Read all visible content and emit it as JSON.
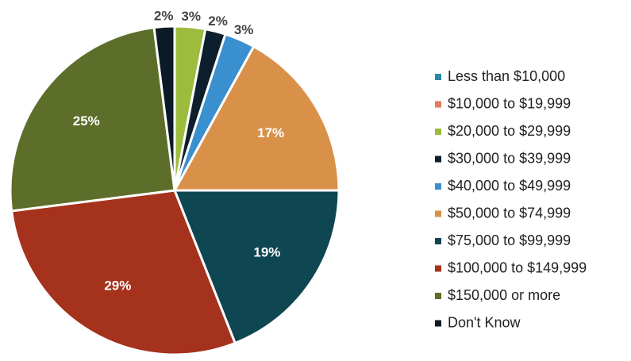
{
  "chart_data": {
    "type": "pie",
    "categories": [
      "Less than $10,000",
      "$10,000 to $19,999",
      "$20,000 to $29,999",
      "$30,000 to $39,999",
      "$40,000 to $49,999",
      "$50,000 to $74,999",
      "$75,000 to $99,999",
      "$100,000  to $149,999",
      "$150,000  or more",
      "Don't Know"
    ],
    "values": [
      0,
      0,
      3,
      2,
      3,
      17,
      19,
      29,
      25,
      2
    ],
    "value_labels": [
      null,
      null,
      "3%",
      "2%",
      "3%",
      "17%",
      "19%",
      "29%",
      "25%",
      "2%"
    ],
    "colors": [
      "#2a87a6",
      "#e07b5e",
      "#9dbb3d",
      "#0d1f2d",
      "#3a8fcf",
      "#d9914a",
      "#0e4651",
      "#a5321c",
      "#5d6e2a",
      "#0b1a26"
    ],
    "legend": "right"
  }
}
